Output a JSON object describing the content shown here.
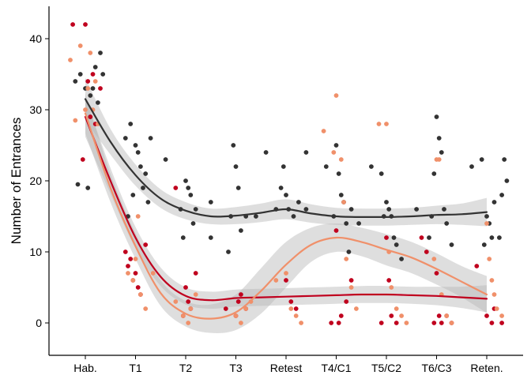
{
  "chart_data": {
    "type": "scatter",
    "title": "",
    "xlabel": "",
    "ylabel": "Number of Entrances",
    "categories": [
      "Hab.",
      "T1",
      "T2",
      "T3",
      "Retest",
      "T4/C1",
      "T5/C2",
      "T6/C3",
      "Reten."
    ],
    "ylim": [
      -4.5,
      44.5
    ],
    "yticks": [
      0,
      10,
      20,
      30,
      40
    ],
    "grid": false,
    "legend": "none",
    "series": [
      {
        "color": "#333333",
        "fit": [
          [
            0,
            31.5
          ],
          [
            0.5,
            25.5
          ],
          [
            1,
            20.8
          ],
          [
            1.5,
            17.5
          ],
          [
            2,
            15.8
          ],
          [
            2.5,
            15.0
          ],
          [
            3,
            15.1
          ],
          [
            3.5,
            15.5
          ],
          [
            4,
            16.0
          ],
          [
            4.5,
            15.4
          ],
          [
            5,
            15.0
          ],
          [
            5.5,
            14.9
          ],
          [
            6,
            14.9
          ],
          [
            6.5,
            15.0
          ],
          [
            7,
            15.2
          ],
          [
            7.5,
            15.3
          ],
          [
            8,
            15.6
          ]
        ],
        "band": [
          3.0,
          1.8,
          1.5,
          1.3,
          1.2,
          1.1,
          1.2,
          1.3,
          1.4,
          1.3,
          1.2,
          1.2,
          1.2,
          1.2,
          1.3,
          1.5,
          2.0
        ],
        "points": [
          [
            -0.2,
            34
          ],
          [
            -0.1,
            35
          ],
          [
            0,
            33
          ],
          [
            0.1,
            32
          ],
          [
            0.2,
            36
          ],
          [
            0.3,
            38
          ],
          [
            0.25,
            31
          ],
          [
            0.15,
            33
          ],
          [
            -0.15,
            19.5
          ],
          [
            0.05,
            19
          ],
          [
            0.35,
            35
          ],
          [
            0.1,
            29
          ],
          [
            0.8,
            26
          ],
          [
            0.9,
            28
          ],
          [
            1,
            25
          ],
          [
            1.1,
            22
          ],
          [
            1.2,
            21
          ],
          [
            0.95,
            18
          ],
          [
            1.05,
            24
          ],
          [
            1.15,
            19
          ],
          [
            1.3,
            26
          ],
          [
            0.85,
            15
          ],
          [
            1.25,
            17
          ],
          [
            1.6,
            23
          ],
          [
            1.9,
            16
          ],
          [
            2,
            20
          ],
          [
            2.05,
            19
          ],
          [
            2.1,
            18
          ],
          [
            2.15,
            14
          ],
          [
            1.95,
            12
          ],
          [
            2.2,
            16
          ],
          [
            2.5,
            12
          ],
          [
            2.95,
            25
          ],
          [
            3,
            22
          ],
          [
            3.05,
            19
          ],
          [
            2.9,
            15
          ],
          [
            3.1,
            13
          ],
          [
            2.85,
            10
          ],
          [
            3.2,
            15
          ],
          [
            2.5,
            17
          ],
          [
            3.4,
            15
          ],
          [
            3.6,
            24
          ],
          [
            3.8,
            16
          ],
          [
            3.9,
            19
          ],
          [
            4,
            18
          ],
          [
            4.05,
            16
          ],
          [
            4.15,
            15
          ],
          [
            4.25,
            17
          ],
          [
            3.95,
            22
          ],
          [
            4.4,
            16
          ],
          [
            4.4,
            24
          ],
          [
            4.8,
            22
          ],
          [
            5,
            25
          ],
          [
            5.05,
            21
          ],
          [
            5.1,
            18
          ],
          [
            4.95,
            15
          ],
          [
            5.15,
            17
          ],
          [
            5.2,
            14
          ],
          [
            5.25,
            10
          ],
          [
            5.3,
            16
          ],
          [
            5.45,
            14
          ],
          [
            5.7,
            22
          ],
          [
            5.9,
            21
          ],
          [
            6,
            17
          ],
          [
            6.05,
            16
          ],
          [
            6.1,
            15
          ],
          [
            5.95,
            15
          ],
          [
            6.15,
            12
          ],
          [
            6.2,
            11
          ],
          [
            6.3,
            9
          ],
          [
            6.6,
            16
          ],
          [
            6.9,
            15
          ],
          [
            7,
            29
          ],
          [
            7.05,
            26
          ],
          [
            7.1,
            24
          ],
          [
            6.95,
            21
          ],
          [
            7.15,
            16
          ],
          [
            7.2,
            14
          ],
          [
            7.3,
            11
          ],
          [
            6.85,
            12
          ],
          [
            7.7,
            22
          ],
          [
            7.9,
            23
          ],
          [
            8,
            15
          ],
          [
            8.05,
            14
          ],
          [
            8.1,
            12
          ],
          [
            8.15,
            17
          ],
          [
            7.95,
            11
          ],
          [
            8.25,
            12
          ],
          [
            8.3,
            18
          ],
          [
            8.35,
            23
          ],
          [
            8.4,
            20
          ]
        ]
      },
      {
        "color": "#c0001e",
        "fit": [
          [
            0,
            29.0
          ],
          [
            0.5,
            20.0
          ],
          [
            1,
            12.0
          ],
          [
            1.5,
            6.5
          ],
          [
            2,
            3.8
          ],
          [
            2.5,
            3.2
          ],
          [
            3,
            3.5
          ],
          [
            3.5,
            3.6
          ],
          [
            4,
            3.7
          ],
          [
            4.5,
            3.8
          ],
          [
            5,
            3.9
          ],
          [
            5.5,
            4.0
          ],
          [
            6,
            4.0
          ],
          [
            6.5,
            3.9
          ],
          [
            7,
            3.8
          ],
          [
            7.5,
            3.6
          ],
          [
            8,
            3.4
          ]
        ],
        "band": [
          2.8,
          1.8,
          1.5,
          1.3,
          1.2,
          1.2,
          1.2,
          1.2,
          1.2,
          1.2,
          1.2,
          1.2,
          1.2,
          1.2,
          1.3,
          1.5,
          1.9
        ],
        "points": [
          [
            -0.25,
            42
          ],
          [
            0,
            42
          ],
          [
            0.05,
            34
          ],
          [
            0.1,
            29
          ],
          [
            -0.05,
            23
          ],
          [
            0.2,
            28
          ],
          [
            0.15,
            35
          ],
          [
            0.3,
            33
          ],
          [
            0.8,
            10
          ],
          [
            0.9,
            9
          ],
          [
            1,
            7
          ],
          [
            1.05,
            5
          ],
          [
            0.95,
            6
          ],
          [
            1.1,
            4
          ],
          [
            0.85,
            8
          ],
          [
            1.2,
            11
          ],
          [
            1.8,
            19
          ],
          [
            2,
            5
          ],
          [
            2.05,
            3
          ],
          [
            2.1,
            2
          ],
          [
            1.95,
            1
          ],
          [
            2.2,
            7
          ],
          [
            2.8,
            2
          ],
          [
            3,
            1
          ],
          [
            3.05,
            3
          ],
          [
            3.1,
            4
          ],
          [
            3.2,
            2
          ],
          [
            4,
            6
          ],
          [
            4.1,
            3
          ],
          [
            4.2,
            2
          ],
          [
            5,
            13
          ],
          [
            4.9,
            0
          ],
          [
            5.05,
            0
          ],
          [
            5.1,
            1
          ],
          [
            5.2,
            3
          ],
          [
            5.3,
            6
          ],
          [
            6,
            12
          ],
          [
            6.05,
            6
          ],
          [
            6.1,
            1
          ],
          [
            5.9,
            0
          ],
          [
            6.2,
            0
          ],
          [
            6.7,
            12
          ],
          [
            6.8,
            10
          ],
          [
            7,
            7
          ],
          [
            7.05,
            1
          ],
          [
            6.95,
            0
          ],
          [
            7.1,
            0
          ],
          [
            7.2,
            1
          ],
          [
            7.3,
            0
          ],
          [
            7.8,
            8
          ],
          [
            8,
            1
          ],
          [
            8.1,
            0
          ],
          [
            8.15,
            2
          ],
          [
            8.3,
            0
          ]
        ]
      },
      {
        "color": "#f0906a",
        "fit": [
          [
            0,
            29.5
          ],
          [
            0.5,
            19.0
          ],
          [
            1,
            10.8
          ],
          [
            1.5,
            4.2
          ],
          [
            2,
            1.3
          ],
          [
            2.5,
            0.6
          ],
          [
            3,
            1.5
          ],
          [
            3.5,
            4.5
          ],
          [
            4,
            8.2
          ],
          [
            4.5,
            11.0
          ],
          [
            5,
            12.0
          ],
          [
            5.5,
            11.4
          ],
          [
            6,
            10.3
          ],
          [
            6.5,
            9.2
          ],
          [
            7,
            7.6
          ],
          [
            7.5,
            5.8
          ],
          [
            8,
            4.0
          ]
        ],
        "band": [
          2.8,
          2.0,
          1.8,
          1.8,
          1.8,
          2.0,
          2.5,
          3.2,
          3.2,
          2.4,
          2.0,
          2.0,
          2.2,
          2.2,
          2.2,
          2.2,
          2.6
        ],
        "points": [
          [
            -0.3,
            37
          ],
          [
            -0.2,
            28.5
          ],
          [
            -0.1,
            39
          ],
          [
            0,
            30
          ],
          [
            0.05,
            33
          ],
          [
            0.1,
            38
          ],
          [
            0.15,
            30
          ],
          [
            0.2,
            34
          ],
          [
            0.25,
            28
          ],
          [
            0.85,
            7
          ],
          [
            0.95,
            6
          ],
          [
            1,
            9
          ],
          [
            1.05,
            15
          ],
          [
            1.1,
            4
          ],
          [
            1.2,
            2
          ],
          [
            1.35,
            7
          ],
          [
            1.8,
            3
          ],
          [
            1.95,
            1
          ],
          [
            2.05,
            0
          ],
          [
            2.1,
            2
          ],
          [
            2.2,
            4
          ],
          [
            3,
            1
          ],
          [
            3.1,
            0
          ],
          [
            3.2,
            2
          ],
          [
            3.3,
            3
          ],
          [
            3.8,
            6
          ],
          [
            4,
            7
          ],
          [
            4.1,
            2
          ],
          [
            4.2,
            1
          ],
          [
            4.3,
            0
          ],
          [
            4.75,
            27
          ],
          [
            5,
            32
          ],
          [
            4.95,
            24
          ],
          [
            5.1,
            23
          ],
          [
            5.15,
            17
          ],
          [
            5.2,
            9
          ],
          [
            5.3,
            5
          ],
          [
            5.4,
            2
          ],
          [
            5.85,
            28
          ],
          [
            6,
            28
          ],
          [
            6.05,
            10
          ],
          [
            6.1,
            5
          ],
          [
            6.2,
            2
          ],
          [
            6.3,
            1
          ],
          [
            6.4,
            0
          ],
          [
            7,
            23
          ],
          [
            7.05,
            23
          ],
          [
            6.95,
            9
          ],
          [
            7.1,
            4
          ],
          [
            7.2,
            1
          ],
          [
            7.3,
            0
          ],
          [
            8,
            14
          ],
          [
            8.05,
            9
          ],
          [
            8.1,
            6
          ],
          [
            8.15,
            4
          ],
          [
            8.2,
            2
          ],
          [
            8.3,
            1
          ]
        ]
      }
    ]
  }
}
